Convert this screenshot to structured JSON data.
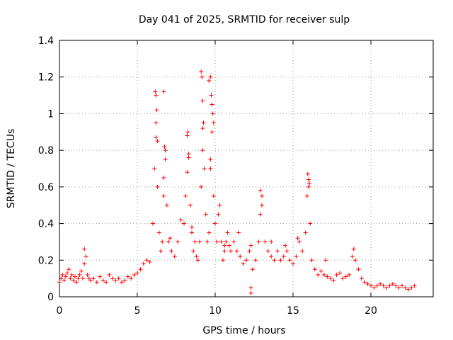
{
  "chart_data": {
    "type": "scatter",
    "title": "Day 041 of 2025, SRMTID for receiver sulp",
    "xlabel": "GPS time / hours",
    "ylabel": "SRMTID / TECUs",
    "xlim": [
      0,
      24
    ],
    "ylim": [
      0,
      1.4
    ],
    "xticks": [
      0,
      5,
      10,
      15,
      20
    ],
    "xtick_labels": [
      "0",
      "5",
      "10",
      "15",
      "20"
    ],
    "yticks": [
      0,
      0.2,
      0.4,
      0.6,
      0.8,
      1.0,
      1.2,
      1.4
    ],
    "ytick_labels": [
      "0",
      "0.2",
      "0.4",
      "0.6",
      "0.8",
      "1",
      "1.2",
      "1.4"
    ],
    "grid": true,
    "marker": "plus",
    "marker_color": "#ff0000",
    "series": [
      {
        "name": "SRMTID",
        "x": [
          0.0,
          0.1,
          0.2,
          0.3,
          0.4,
          0.5,
          0.6,
          0.7,
          0.8,
          0.9,
          1.0,
          1.1,
          1.2,
          1.3,
          1.4,
          1.5,
          1.6,
          1.7,
          1.8,
          1.9,
          2.0,
          2.2,
          2.4,
          2.6,
          2.8,
          3.0,
          3.2,
          3.4,
          3.6,
          3.8,
          4.0,
          4.2,
          4.4,
          4.6,
          4.8,
          5.0,
          5.2,
          5.4,
          5.6,
          5.8,
          6.0,
          6.1,
          6.2,
          6.3,
          6.4,
          6.5,
          6.6,
          6.7,
          6.8,
          6.9,
          7.0,
          7.2,
          7.4,
          7.6,
          7.8,
          8.0,
          8.1,
          8.2,
          8.3,
          8.4,
          8.5,
          8.6,
          8.7,
          8.8,
          8.9,
          9.0,
          9.1,
          9.2,
          9.3,
          9.4,
          9.5,
          9.6,
          9.7,
          9.8,
          9.9,
          10.0,
          10.1,
          10.2,
          10.3,
          10.4,
          10.5,
          10.6,
          10.7,
          10.8,
          10.9,
          11.0,
          11.2,
          11.4,
          11.6,
          11.8,
          12.0,
          12.2,
          12.3,
          12.4,
          12.6,
          12.8,
          12.9,
          13.0,
          13.2,
          13.4,
          13.6,
          13.8,
          14.0,
          14.2,
          14.4,
          14.6,
          14.8,
          15.0,
          15.2,
          15.4,
          15.6,
          15.8,
          15.9,
          16.0,
          16.1,
          16.2,
          16.4,
          16.6,
          16.8,
          17.0,
          17.2,
          17.4,
          17.6,
          17.8,
          18.0,
          18.2,
          18.4,
          18.6,
          18.8,
          18.9,
          19.0,
          19.2,
          19.4,
          19.6,
          19.8,
          20.0,
          20.2,
          20.4,
          20.6,
          20.8,
          21.0,
          21.2,
          21.4,
          21.6,
          21.8,
          22.0,
          22.2,
          22.4,
          22.6,
          22.8,
          6.15,
          6.2,
          6.25,
          6.3,
          6.7,
          6.75,
          6.8,
          8.2,
          8.25,
          8.3,
          9.1,
          9.15,
          9.2,
          9.25,
          9.6,
          9.7,
          9.75,
          9.8,
          9.85,
          9.9,
          6.2,
          6.7,
          9.2,
          9.7,
          15.95,
          16.0,
          16.05,
          12.9,
          13.0,
          12.3,
          1.6,
          12.3,
          7.1,
          8.5,
          10.6,
          11.5,
          13.6,
          14.5,
          15.3,
          17.1
        ],
        "y": [
          0.08,
          0.1,
          0.12,
          0.09,
          0.11,
          0.13,
          0.15,
          0.1,
          0.12,
          0.09,
          0.11,
          0.08,
          0.1,
          0.12,
          0.14,
          0.1,
          0.18,
          0.22,
          0.12,
          0.1,
          0.09,
          0.1,
          0.08,
          0.11,
          0.09,
          0.08,
          0.12,
          0.1,
          0.09,
          0.1,
          0.08,
          0.09,
          0.11,
          0.1,
          0.12,
          0.13,
          0.15,
          0.18,
          0.2,
          0.19,
          0.4,
          0.7,
          0.95,
          0.6,
          0.35,
          0.25,
          0.3,
          0.55,
          0.75,
          0.5,
          0.3,
          0.25,
          0.22,
          0.3,
          0.42,
          0.4,
          0.55,
          0.68,
          0.78,
          0.5,
          0.35,
          0.25,
          0.3,
          0.22,
          0.2,
          0.3,
          0.6,
          0.92,
          0.7,
          0.45,
          0.3,
          0.35,
          0.7,
          0.9,
          0.55,
          0.4,
          0.3,
          0.45,
          0.5,
          0.3,
          0.2,
          0.25,
          0.3,
          0.35,
          0.28,
          0.25,
          0.3,
          0.25,
          0.22,
          0.18,
          0.2,
          0.25,
          0.28,
          0.15,
          0.2,
          0.3,
          0.45,
          0.5,
          0.3,
          0.25,
          0.22,
          0.2,
          0.25,
          0.2,
          0.22,
          0.25,
          0.2,
          0.18,
          0.22,
          0.3,
          0.25,
          0.35,
          0.55,
          0.6,
          0.4,
          0.2,
          0.15,
          0.12,
          0.14,
          0.12,
          0.11,
          0.1,
          0.09,
          0.12,
          0.13,
          0.1,
          0.11,
          0.12,
          0.22,
          0.26,
          0.2,
          0.15,
          0.1,
          0.08,
          0.07,
          0.06,
          0.05,
          0.06,
          0.07,
          0.06,
          0.05,
          0.06,
          0.07,
          0.06,
          0.05,
          0.06,
          0.05,
          0.04,
          0.05,
          0.06,
          1.12,
          1.1,
          1.02,
          0.85,
          1.12,
          0.82,
          0.8,
          0.88,
          0.9,
          0.76,
          1.23,
          1.2,
          1.07,
          0.95,
          1.18,
          1.2,
          1.1,
          1.05,
          1.0,
          0.95,
          0.87,
          0.65,
          0.8,
          0.75,
          0.67,
          0.64,
          0.62,
          0.58,
          0.55,
          0.02,
          0.26,
          0.05,
          0.32,
          0.38,
          0.28,
          0.35,
          0.3,
          0.28,
          0.32,
          0.2
        ]
      }
    ]
  }
}
